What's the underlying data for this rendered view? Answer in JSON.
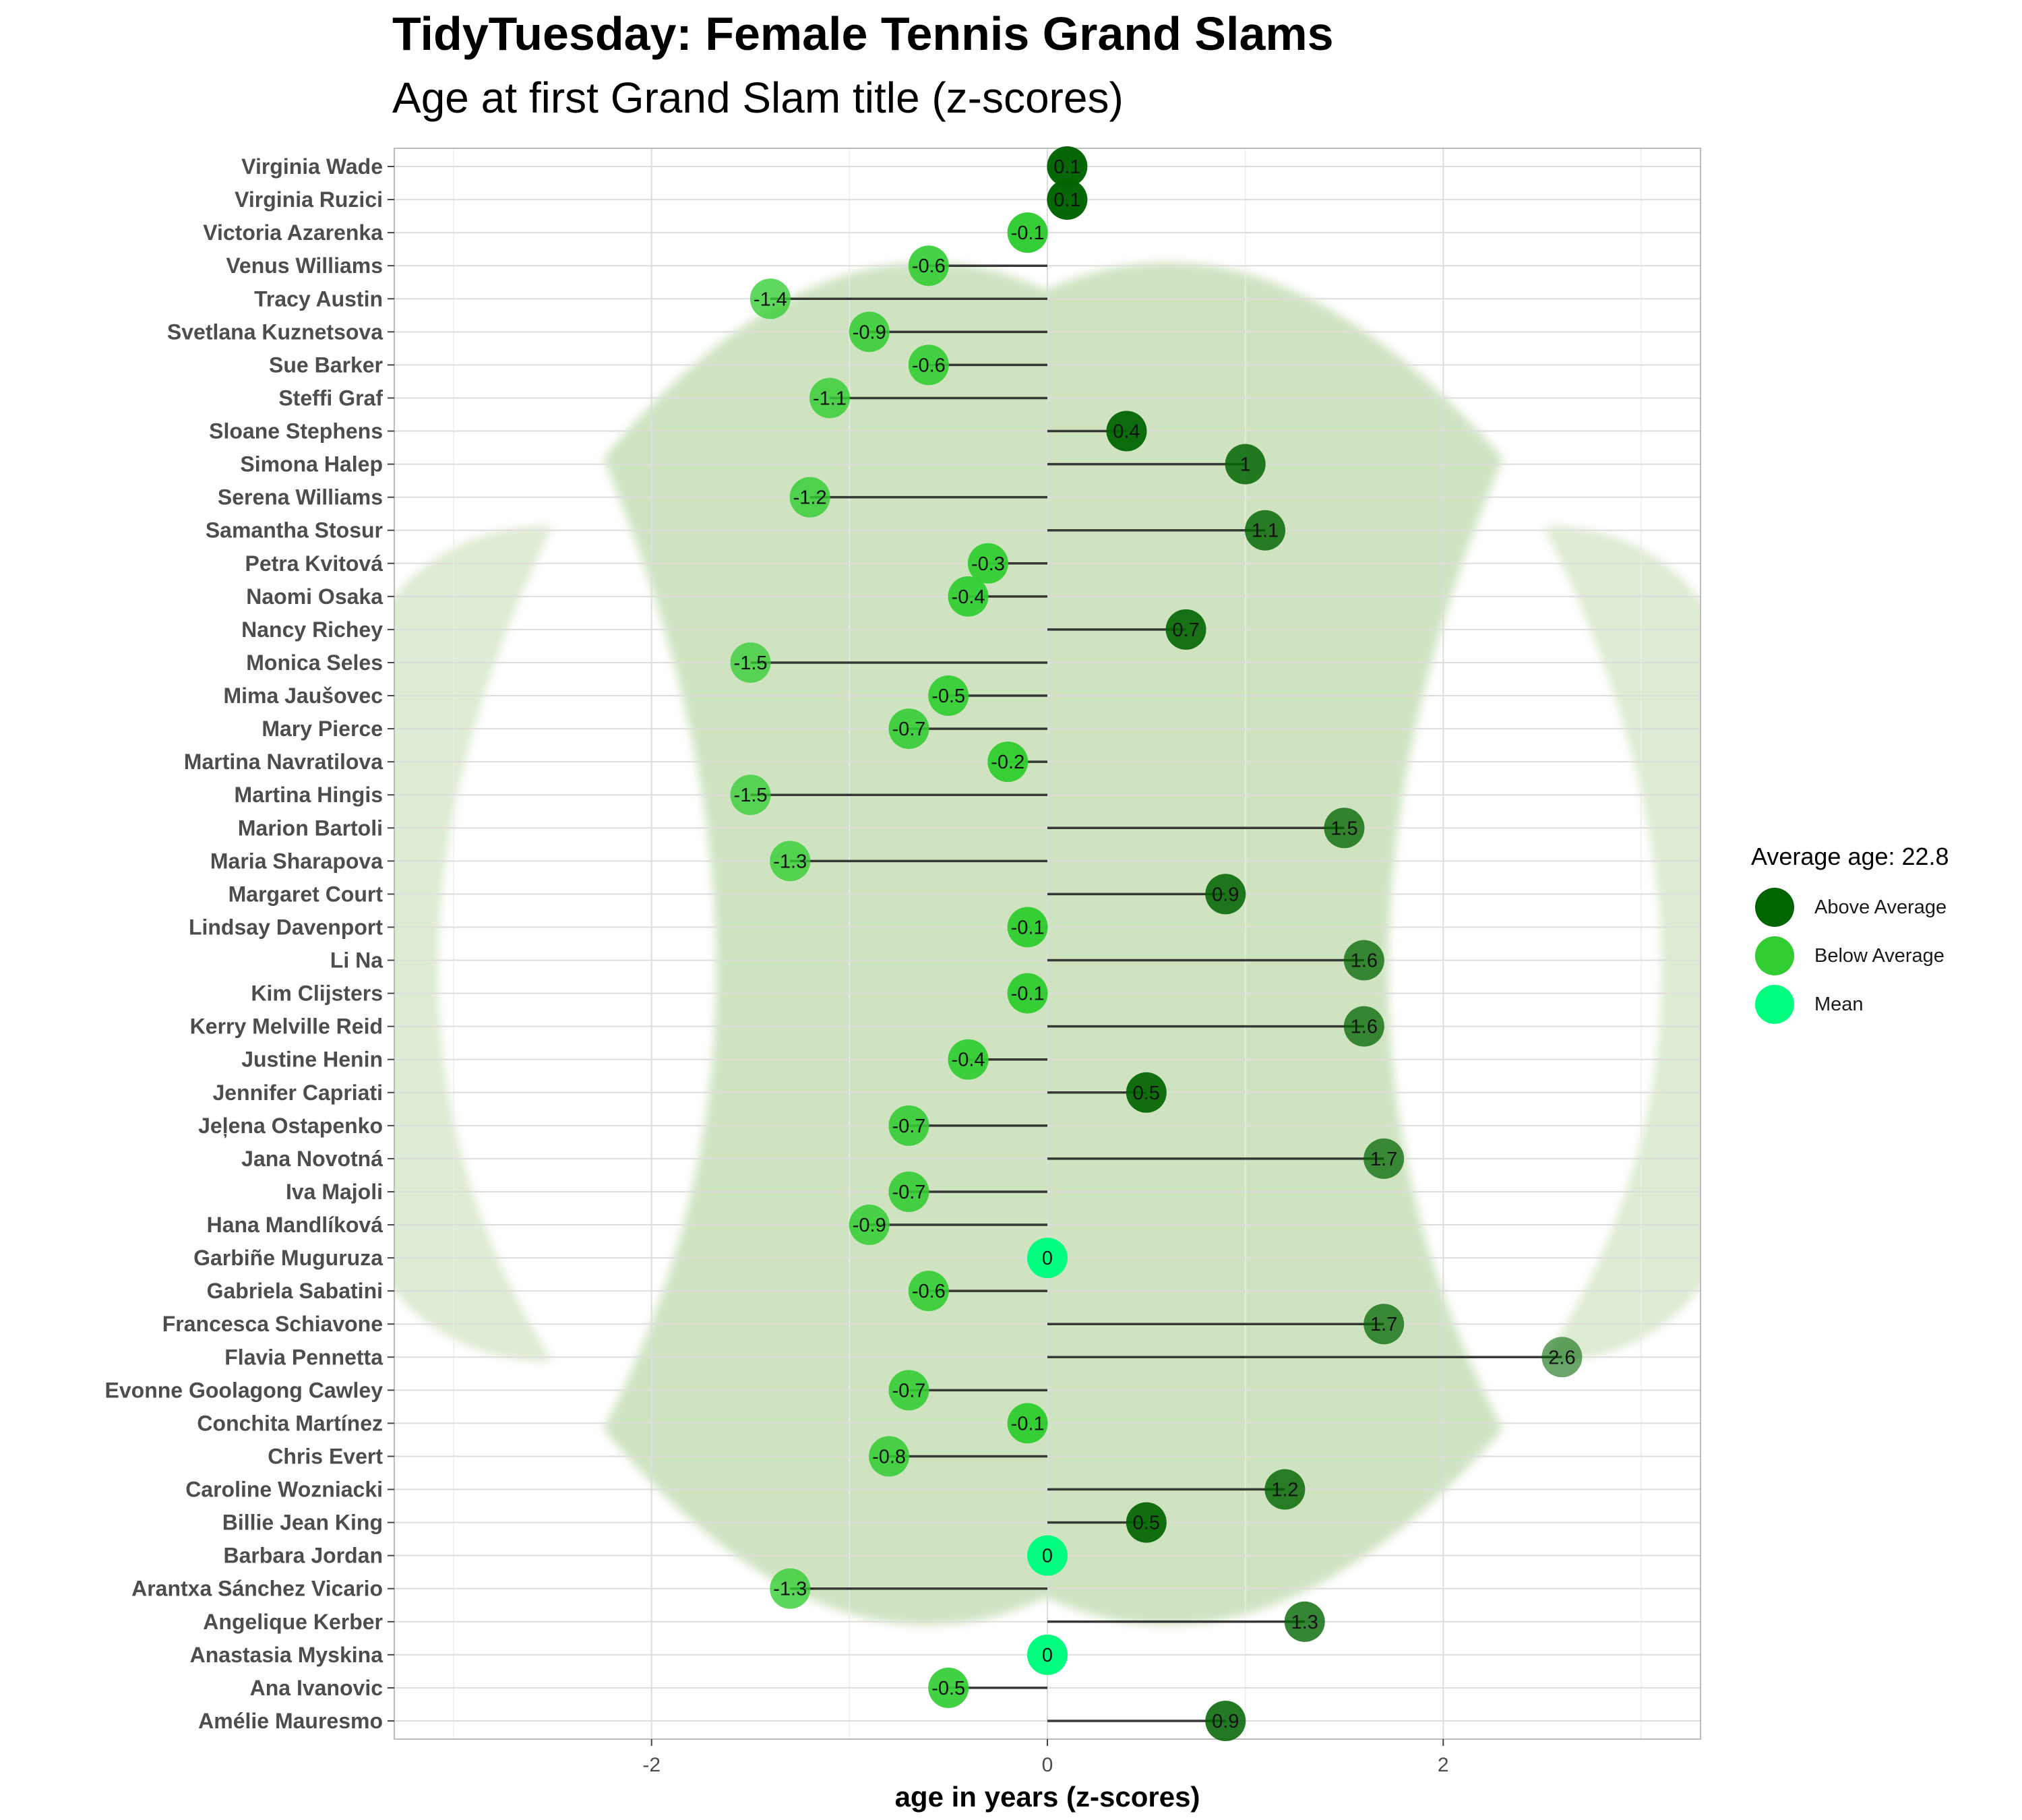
{
  "title": "TidyTuesday: Female Tennis Grand Slams",
  "subtitle": "Age at first Grand Slam title (z-scores)",
  "legend": {
    "title": "Average age: 22.8",
    "items": [
      {
        "label": "Above Average",
        "color": "#006400"
      },
      {
        "label": "Below Average",
        "color": "#32cd32"
      },
      {
        "label": "Mean",
        "color": "#00ff7f"
      }
    ]
  },
  "chart_data": {
    "type": "lollipop",
    "xlabel": "age in years (z-scores)",
    "ylabel": "",
    "xlim": [
      -3.3,
      3.3
    ],
    "x_ticks": [
      -2,
      0,
      2
    ],
    "grid": true,
    "legend_position": "right",
    "categories": [
      "Virginia Wade",
      "Virginia Ruzici",
      "Victoria Azarenka",
      "Venus Williams",
      "Tracy Austin",
      "Svetlana Kuznetsova",
      "Sue Barker",
      "Steffi Graf",
      "Sloane Stephens",
      "Simona Halep",
      "Serena Williams",
      "Samantha Stosur",
      "Petra Kvitová",
      "Naomi Osaka",
      "Nancy Richey",
      "Monica Seles",
      "Mima Jaušovec",
      "Mary Pierce",
      "Martina Navratilova",
      "Martina Hingis",
      "Marion Bartoli",
      "Maria Sharapova",
      "Margaret Court",
      "Lindsay Davenport",
      "Li Na",
      "Kim Clijsters",
      "Kerry Melville Reid",
      "Justine Henin",
      "Jennifer Capriati",
      "Jeļena Ostapenko",
      "Jana Novotná",
      "Iva Majoli",
      "Hana Mandlíková",
      "Garbiñe Muguruza",
      "Gabriela Sabatini",
      "Francesca Schiavone",
      "Flavia Pennetta",
      "Evonne Goolagong Cawley",
      "Conchita Martínez",
      "Chris Evert",
      "Caroline Wozniacki",
      "Billie Jean King",
      "Barbara Jordan",
      "Arantxa Sánchez Vicario",
      "Angelique Kerber",
      "Anastasia Myskina",
      "Ana Ivanovic",
      "Amélie Mauresmo"
    ],
    "values": [
      0.1,
      0.1,
      -0.1,
      -0.6,
      -1.4,
      -0.9,
      -0.6,
      -1.1,
      0.4,
      1,
      -1.2,
      1.1,
      -0.3,
      -0.4,
      0.7,
      -1.5,
      -0.5,
      -0.7,
      -0.2,
      -1.5,
      1.5,
      -1.3,
      0.9,
      -0.1,
      1.6,
      -0.1,
      1.6,
      -0.4,
      0.5,
      -0.7,
      1.7,
      -0.7,
      -0.9,
      0,
      -0.6,
      1.7,
      2.6,
      -0.7,
      -0.1,
      -0.8,
      1.2,
      0.5,
      0,
      -1.3,
      1.3,
      0,
      -0.5,
      0.9
    ],
    "labels": [
      "0.1",
      "0.1",
      "-0.1",
      "-0.6",
      "-1.4",
      "-0.9",
      "-0.6",
      "-1.1",
      "0.4",
      "1",
      "-1.2",
      "1.1",
      "-0.3",
      "-0.4",
      "0.7",
      "-1.5",
      "-0.5",
      "-0.7",
      "-0.2",
      "-1.5",
      "1.5",
      "-1.3",
      "0.9",
      "-0.1",
      "1.6",
      "-0.1",
      "1.6",
      "-0.4",
      "0.5",
      "-0.7",
      "1.7",
      "-0.7",
      "-0.9",
      "0",
      "-0.6",
      "1.7",
      "2.6",
      "-0.7",
      "-0.1",
      "-0.8",
      "1.2",
      "0.5",
      "0",
      "-1.3",
      "1.3",
      "0",
      "-0.5",
      "0.9"
    ],
    "groups": [
      "Above Average",
      "Above Average",
      "Below Average",
      "Below Average",
      "Below Average",
      "Below Average",
      "Below Average",
      "Below Average",
      "Above Average",
      "Above Average",
      "Below Average",
      "Above Average",
      "Below Average",
      "Below Average",
      "Above Average",
      "Below Average",
      "Below Average",
      "Below Average",
      "Below Average",
      "Below Average",
      "Above Average",
      "Below Average",
      "Above Average",
      "Below Average",
      "Above Average",
      "Below Average",
      "Above Average",
      "Below Average",
      "Above Average",
      "Below Average",
      "Above Average",
      "Below Average",
      "Below Average",
      "Mean",
      "Below Average",
      "Above Average",
      "Above Average",
      "Below Average",
      "Below Average",
      "Below Average",
      "Above Average",
      "Above Average",
      "Mean",
      "Below Average",
      "Above Average",
      "Mean",
      "Below Average",
      "Above Average"
    ]
  }
}
